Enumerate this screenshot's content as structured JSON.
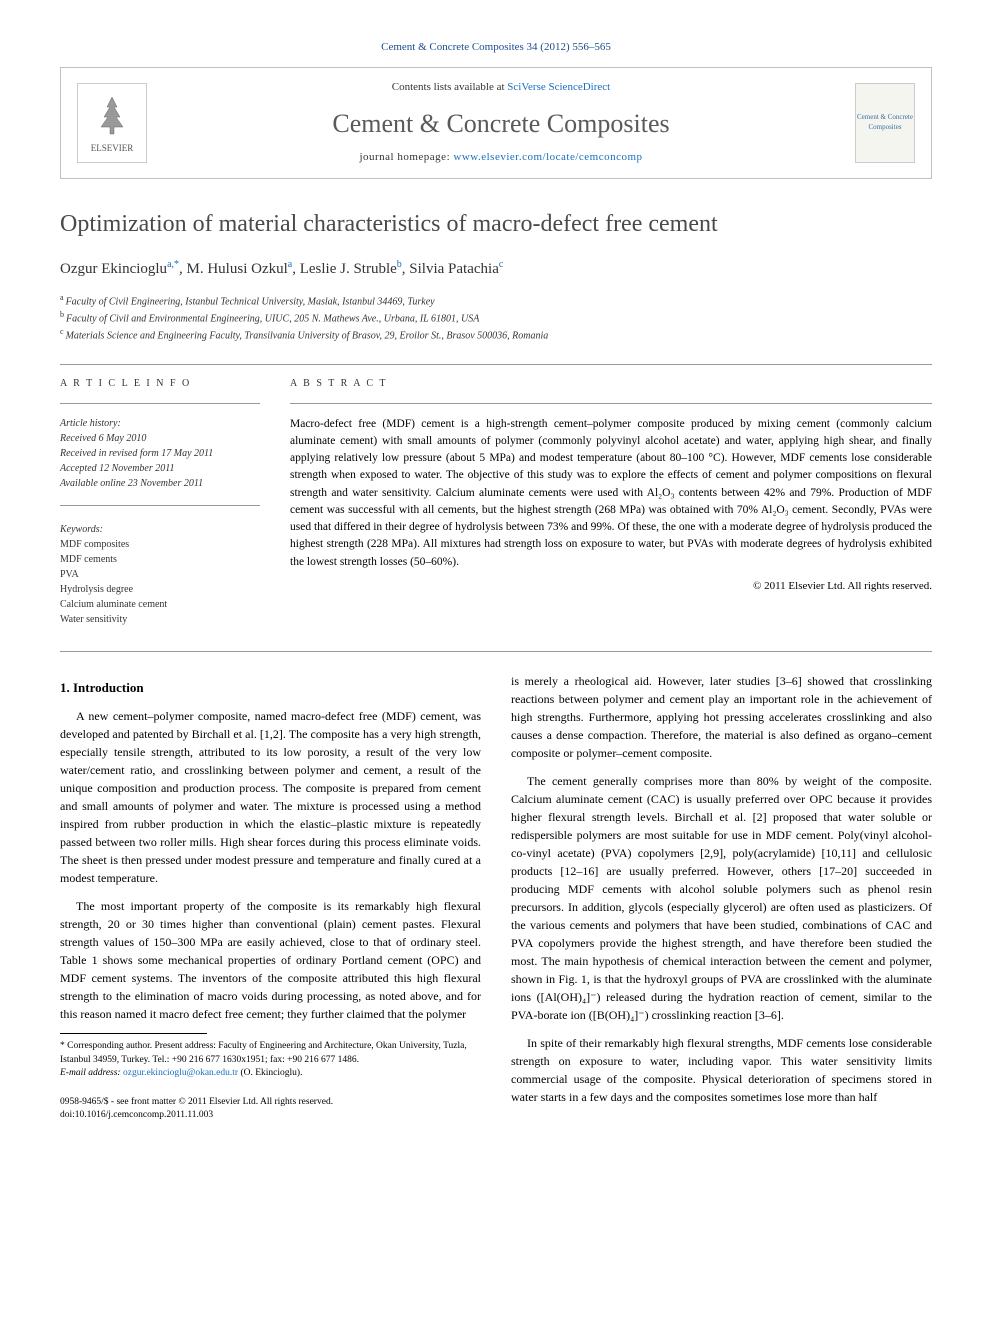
{
  "citation": "Cement & Concrete Composites 34 (2012) 556–565",
  "header": {
    "contents_prefix": "Contents lists available at ",
    "contents_link": "SciVerse ScienceDirect",
    "journal": "Cement & Concrete Composites",
    "homepage_prefix": "journal homepage: ",
    "homepage_url": "www.elsevier.com/locate/cemconcomp",
    "publisher_logo_text": "ELSEVIER",
    "cover_text": "Cement & Concrete Composites"
  },
  "title": "Optimization of material characteristics of macro-defect free cement",
  "authors": [
    {
      "name": "Ozgur Ekincioglu",
      "sup": "a,*"
    },
    {
      "name": "M. Hulusi Ozkul",
      "sup": "a"
    },
    {
      "name": "Leslie J. Struble",
      "sup": "b"
    },
    {
      "name": "Silvia Patachia",
      "sup": "c"
    }
  ],
  "affiliations": [
    {
      "sup": "a",
      "text": "Faculty of Civil Engineering, Istanbul Technical University, Maslak, Istanbul 34469, Turkey"
    },
    {
      "sup": "b",
      "text": "Faculty of Civil and Environmental Engineering, UIUC, 205 N. Mathews Ave., Urbana, IL 61801, USA"
    },
    {
      "sup": "c",
      "text": "Materials Science and Engineering Faculty, Transilvania University of Brasov, 29, Eroilor St., Brasov 500036, Romania"
    }
  ],
  "info_heading": "A R T I C L E   I N F O",
  "history_label": "Article history:",
  "history": [
    "Received 6 May 2010",
    "Received in revised form 17 May 2011",
    "Accepted 12 November 2011",
    "Available online 23 November 2011"
  ],
  "keywords_label": "Keywords:",
  "keywords": [
    "MDF composites",
    "MDF cements",
    "PVA",
    "Hydrolysis degree",
    "Calcium aluminate cement",
    "Water sensitivity"
  ],
  "abstract_heading": "A B S T R A C T",
  "abstract": "Macro-defect free (MDF) cement is a high-strength cement–polymer composite produced by mixing cement (commonly calcium aluminate cement) with small amounts of polymer (commonly polyvinyl alcohol acetate) and water, applying high shear, and finally applying relatively low pressure (about 5 MPa) and modest temperature (about 80–100 °C). However, MDF cements lose considerable strength when exposed to water. The objective of this study was to explore the effects of cement and polymer compositions on flexural strength and water sensitivity. Calcium aluminate cements were used with Al₂O₃ contents between 42% and 79%. Production of MDF cement was successful with all cements, but the highest strength (268 MPa) was obtained with 70% Al₂O₃ cement. Secondly, PVAs were used that differed in their degree of hydrolysis between 73% and 99%. Of these, the one with a moderate degree of hydrolysis produced the highest strength (228 MPa). All mixtures had strength loss on exposure to water, but PVAs with moderate degrees of hydrolysis exhibited the lowest strength losses (50–60%).",
  "copyright": "© 2011 Elsevier Ltd. All rights reserved.",
  "body": {
    "section1_heading": "1. Introduction",
    "col1_p1": "A new cement–polymer composite, named macro-defect free (MDF) cement, was developed and patented by Birchall et al. [1,2]. The composite has a very high strength, especially tensile strength, attributed to its low porosity, a result of the very low water/cement ratio, and crosslinking between polymer and cement, a result of the unique composition and production process. The composite is prepared from cement and small amounts of polymer and water. The mixture is processed using a method inspired from rubber production in which the elastic–plastic mixture is repeatedly passed between two roller mills. High shear forces during this process eliminate voids. The sheet is then pressed under modest pressure and temperature and finally cured at a modest temperature.",
    "col1_p2": "The most important property of the composite is its remarkably high flexural strength, 20 or 30 times higher than conventional (plain) cement pastes. Flexural strength values of 150–300 MPa are easily achieved, close to that of ordinary steel. Table 1 shows some mechanical properties of ordinary Portland cement (OPC) and MDF cement systems. The inventors of the composite attributed this high flexural strength to the elimination of macro voids during processing, as noted above, and for this reason named it macro defect free cement; they further claimed that the polymer",
    "col2_p1": "is merely a rheological aid. However, later studies [3–6] showed that crosslinking reactions between polymer and cement play an important role in the achievement of high strengths. Furthermore, applying hot pressing accelerates crosslinking and also causes a dense compaction. Therefore, the material is also defined as organo–cement composite or polymer–cement composite.",
    "col2_p2": "The cement generally comprises more than 80% by weight of the composite. Calcium aluminate cement (CAC) is usually preferred over OPC because it provides higher flexural strength levels. Birchall et al. [2] proposed that water soluble or redispersible polymers are most suitable for use in MDF cement. Poly(vinyl alcohol-co-vinyl acetate) (PVA) copolymers [2,9], poly(acrylamide) [10,11] and cellulosic products [12–16] are usually preferred. However, others [17–20] succeeded in producing MDF cements with alcohol soluble polymers such as phenol resin precursors. In addition, glycols (especially glycerol) are often used as plasticizers. Of the various cements and polymers that have been studied, combinations of CAC and PVA copolymers provide the highest strength, and have therefore been studied the most. The main hypothesis of chemical interaction between the cement and polymer, shown in Fig. 1, is that the hydroxyl groups of PVA are crosslinked with the aluminate ions ([Al(OH)₄]⁻) released during the hydration reaction of cement, similar to the PVA-borate ion ([B(OH)₄]⁻) crosslinking reaction [3–6].",
    "col2_p3": "In spite of their remarkably high flexural strengths, MDF cements lose considerable strength on exposure to water, including vapor. This water sensitivity limits commercial usage of the composite. Physical deterioration of specimens stored in water starts in a few days and the composites sometimes lose more than half"
  },
  "footnote": {
    "corr_label": "* Corresponding author. Present address: Faculty of Engineering and Architecture, Okan University, Tuzla, Istanbul 34959, Turkey. Tel.: +90 216 677 1630x1951; fax: +90 216 677 1486.",
    "email_label": "E-mail address:",
    "email": "ozgur.ekincioglu@okan.edu.tr",
    "email_suffix": "(O. Ekincioglu)."
  },
  "doi": {
    "line1": "0958-9465/$ - see front matter © 2011 Elsevier Ltd. All rights reserved.",
    "line2": "doi:10.1016/j.cemconcomp.2011.11.003"
  },
  "colors": {
    "link": "#1a6ec0",
    "text": "#000000",
    "heading_gray": "#4a4a4a",
    "journal_gray": "#5a5a5a",
    "border": "#c0c0c0"
  }
}
